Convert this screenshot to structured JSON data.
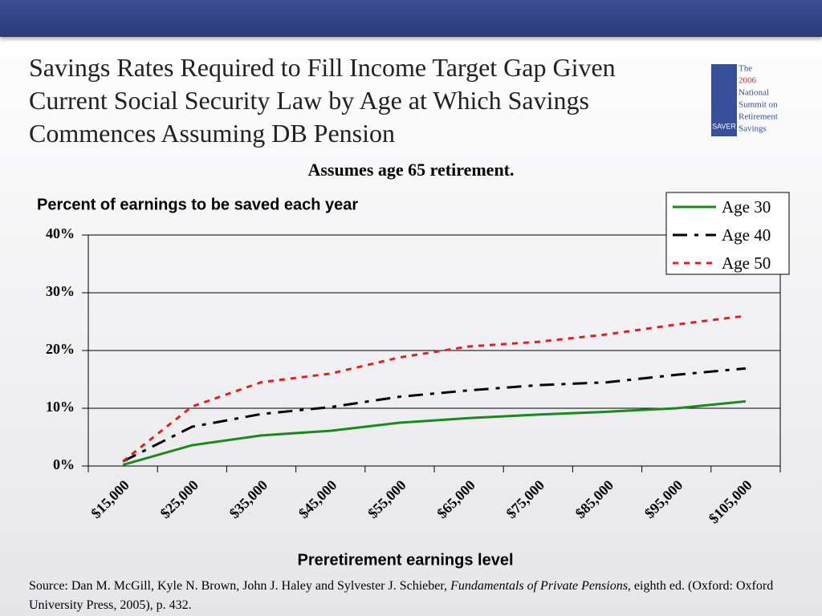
{
  "chart_data": {
    "type": "line",
    "title": "Savings Rates Required to Fill Income Target Gap Given Current Social Security Law by Age at Which Savings Commences Assuming DB Pension",
    "subtitle": "Assumes age 65 retirement.",
    "y_label": "Percent of earnings to be saved each year",
    "x_label": "Preretirement earnings level",
    "categories": [
      "$15,000",
      "$25,000",
      "$35,000",
      "$45,000",
      "$55,000",
      "$65,000",
      "$75,000",
      "$85,000",
      "$95,000",
      "$105,000"
    ],
    "series": [
      {
        "name": "Age 30",
        "color": "#1a8a1a",
        "values": [
          0.2,
          3.6,
          5.3,
          6.1,
          7.5,
          8.3,
          8.9,
          9.4,
          10.0,
          11.2
        ]
      },
      {
        "name": "Age 40",
        "color": "#000000",
        "values": [
          0.8,
          6.8,
          9.0,
          10.2,
          12.0,
          13.1,
          14.0,
          14.5,
          15.8,
          16.9
        ]
      },
      {
        "name": "Age 50",
        "color": "#e02020",
        "values": [
          0.8,
          10.3,
          14.5,
          16.0,
          18.8,
          20.7,
          21.5,
          22.8,
          24.5,
          26.0
        ]
      }
    ],
    "ylim": [
      0,
      40
    ],
    "yticks": [
      {
        "value": 0,
        "label": "0%"
      },
      {
        "value": 10,
        "label": "10%"
      },
      {
        "value": 20,
        "label": "20%"
      },
      {
        "value": 30,
        "label": "30%"
      },
      {
        "value": 40,
        "label": "40%"
      }
    ],
    "grid": true,
    "legend": "top-right"
  },
  "source": {
    "prefix": "Source: Dan M. McGill, Kyle N. Brown, John J. Haley and Sylvester J. Schieber, ",
    "book": "Fundamentals of Private Pensions",
    "suffix": ", eighth ed. (Oxford: Oxford University Press, 2005), p. 432."
  },
  "logo": {
    "badge": "SAVER",
    "lines": [
      "The",
      "2006",
      "National",
      "Summit on",
      "Retirement",
      "Savings"
    ]
  }
}
